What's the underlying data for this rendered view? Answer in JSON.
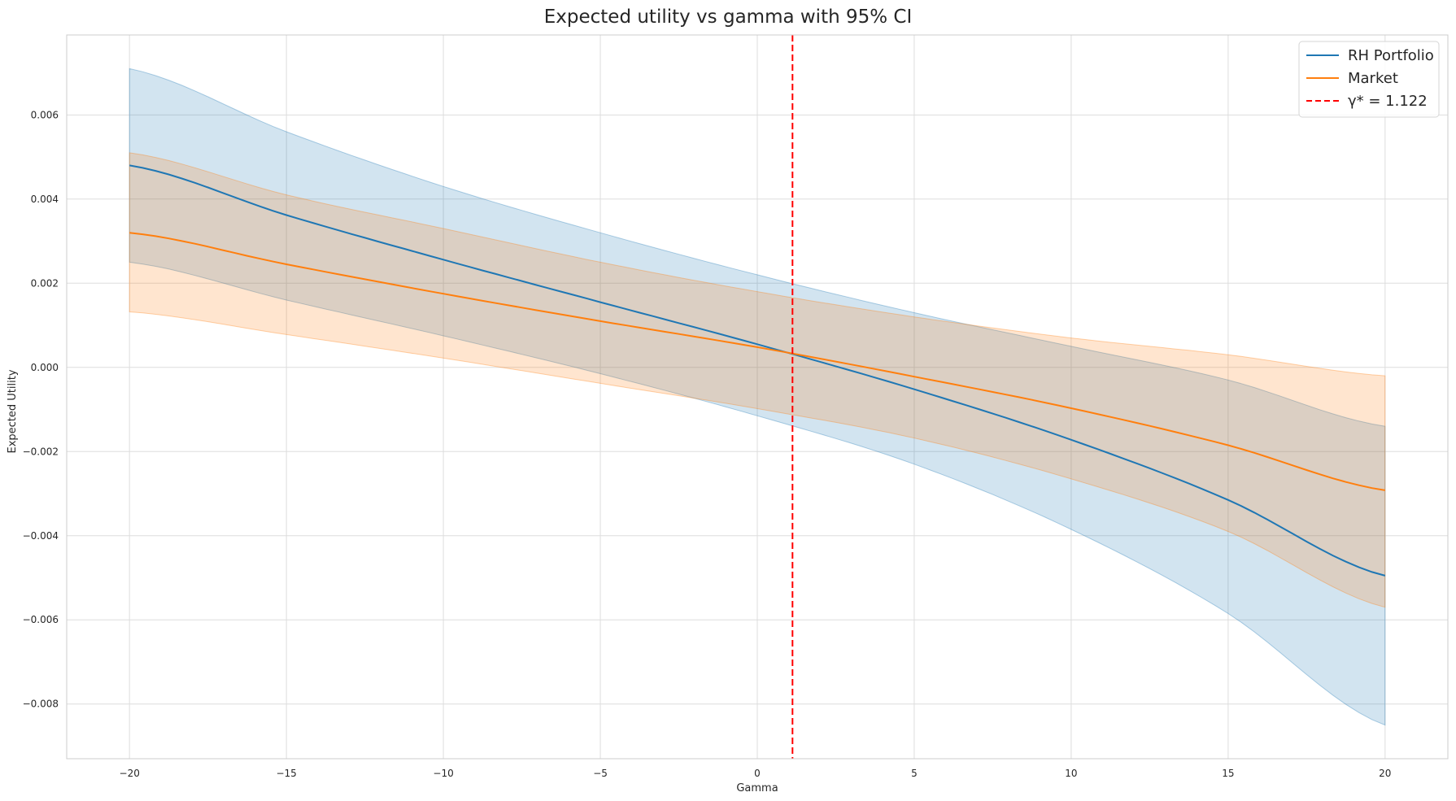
{
  "chart_data": {
    "type": "line",
    "title": "Expected utility vs gamma with 95% CI",
    "xlabel": "Gamma",
    "ylabel": "Expected Utility",
    "xlim": [
      -22,
      22
    ],
    "ylim": [
      -0.0093,
      0.0079
    ],
    "xticks": [
      -20,
      -15,
      -10,
      -5,
      0,
      5,
      10,
      15,
      20
    ],
    "xtick_labels": [
      "−20",
      "−15",
      "−10",
      "−5",
      "0",
      "5",
      "10",
      "15",
      "20"
    ],
    "yticks": [
      -0.008,
      -0.006,
      -0.004,
      -0.002,
      0.0,
      0.002,
      0.004,
      0.006
    ],
    "ytick_labels": [
      "−0.008",
      "−0.006",
      "−0.004",
      "−0.002",
      "0.000",
      "0.002",
      "0.004",
      "0.006"
    ],
    "grid": true,
    "legend_position": "top-right",
    "x": [
      -20,
      -15,
      -10,
      -5,
      0,
      5,
      10,
      15,
      20
    ],
    "series": [
      {
        "name": "RH Portfolio",
        "color": "#1f77b4",
        "values": [
          0.0048,
          0.00362,
          0.00256,
          0.00155,
          0.00055,
          -0.00052,
          -0.00172,
          -0.00315,
          -0.00495
        ],
        "ci_lower": [
          0.0025,
          0.0016,
          0.00075,
          -0.00015,
          -0.00115,
          -0.0023,
          -0.00385,
          -0.00585,
          -0.0085
        ],
        "ci_upper": [
          0.0071,
          0.0056,
          0.0043,
          0.0032,
          0.0022,
          0.0013,
          0.0005,
          -0.0003,
          -0.0014
        ]
      },
      {
        "name": "Market",
        "color": "#ff7f0e",
        "values": [
          0.0032,
          0.00245,
          0.00175,
          0.0011,
          0.00048,
          -0.00022,
          -0.00097,
          -0.00185,
          -0.00292
        ],
        "ci_lower": [
          0.00132,
          0.00078,
          0.00022,
          -0.00038,
          -0.00098,
          -0.00168,
          -0.00265,
          -0.0039,
          -0.0057
        ],
        "ci_upper": [
          0.0051,
          0.0041,
          0.0033,
          0.0025,
          0.0018,
          0.0012,
          0.0007,
          0.0003,
          -0.0002
        ]
      }
    ],
    "reference_line": {
      "label": "γ* = 1.122",
      "x": 1.122,
      "color": "#ff0000",
      "style": "dashed"
    }
  }
}
